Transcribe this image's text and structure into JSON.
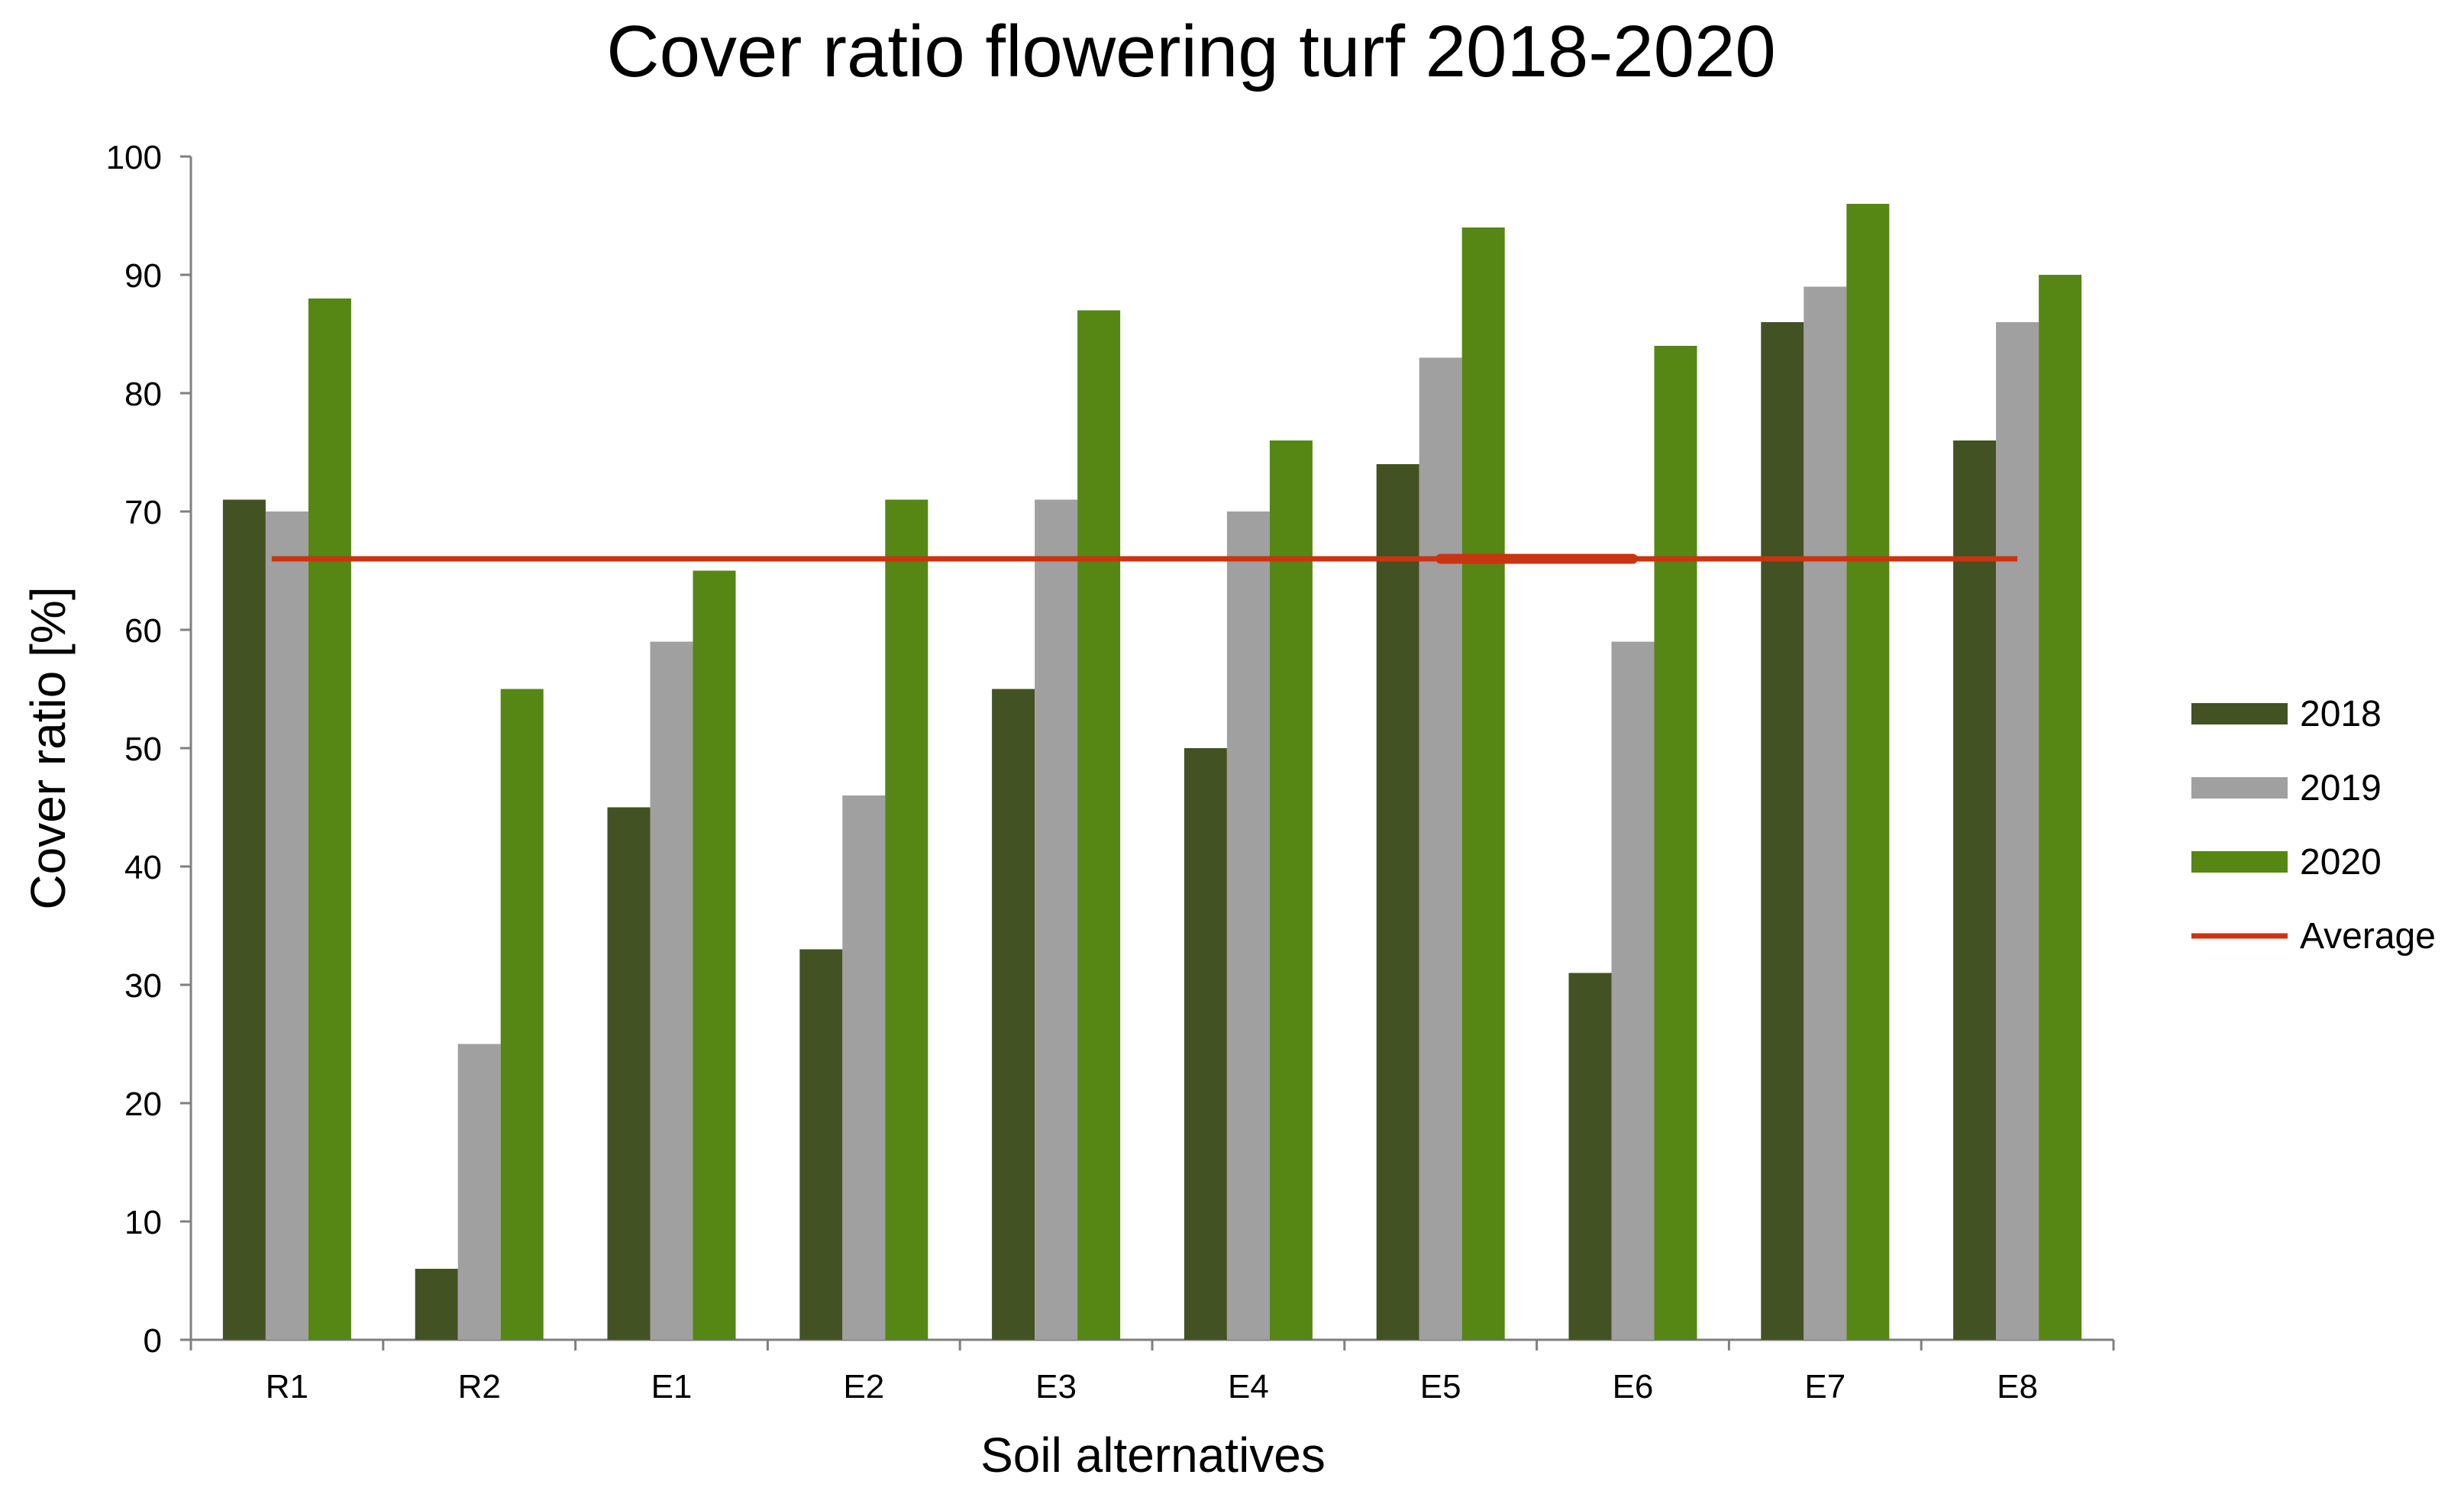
{
  "chart_data": {
    "type": "bar",
    "title": "Cover ratio flowering turf 2018-2020",
    "xlabel": "Soil alternatives",
    "ylabel": "Cover ratio [%]",
    "ylim": [
      0,
      100
    ],
    "y_ticks": [
      0,
      10,
      20,
      30,
      40,
      50,
      60,
      70,
      80,
      90,
      100
    ],
    "grid": false,
    "legend_position": "right",
    "categories": [
      "R1",
      "R2",
      "E1",
      "E2",
      "E3",
      "E4",
      "E5",
      "E6",
      "E7",
      "E8"
    ],
    "series": [
      {
        "name": "2018",
        "color": "#425222",
        "values": [
          71,
          6,
          45,
          33,
          55,
          50,
          74,
          31,
          86,
          76
        ]
      },
      {
        "name": "2019",
        "color": "#a0a0a0",
        "values": [
          70,
          25,
          59,
          46,
          71,
          70,
          83,
          59,
          89,
          86
        ]
      },
      {
        "name": "2020",
        "color": "#568614",
        "values": [
          88,
          55,
          65,
          71,
          87,
          76,
          94,
          84,
          96,
          90
        ]
      }
    ],
    "reference_line": {
      "name": "Average",
      "value": 66,
      "color": "#cc3311"
    }
  }
}
